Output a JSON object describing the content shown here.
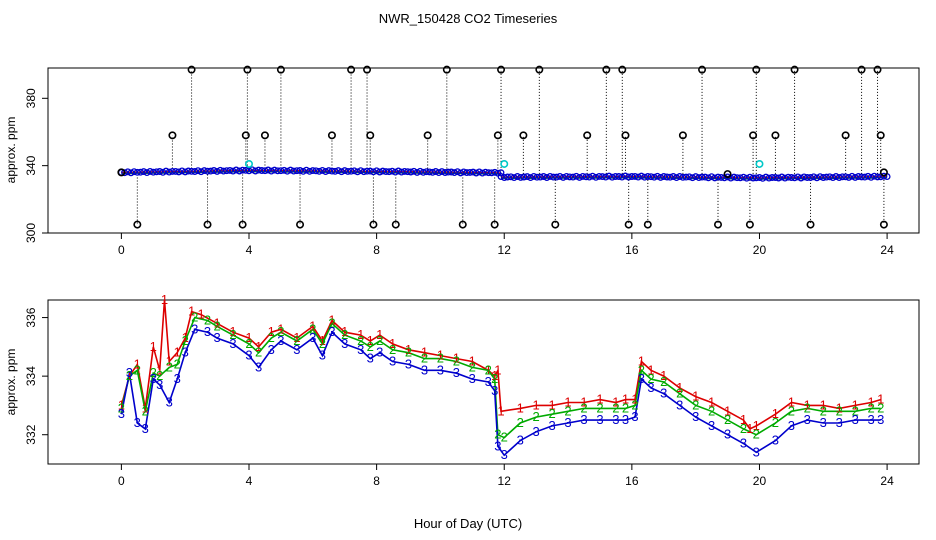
{
  "figure": {
    "title": "NWR_150428  CO2 Timeseries",
    "xlabel": "Hour of Day (UTC)"
  },
  "chart_data": [
    {
      "type": "scatter",
      "ylabel": "approx. ppm",
      "xlim": [
        -2.3,
        25.0
      ],
      "ylim": [
        300,
        398
      ],
      "xticks": [
        0,
        4,
        8,
        12,
        16,
        20,
        24
      ],
      "yticks": [
        300,
        340,
        380
      ],
      "ytick_labels": [
        "300",
        "340",
        "380"
      ],
      "colors": {
        "black": "#000000",
        "cyan": "#00c8c8",
        "blue": "#0000cc",
        "red": "#dd0000",
        "green": "#00aa00"
      },
      "main_series": {
        "name": "co2 measurements",
        "segments": [
          {
            "x": [
              0.0,
              4.0,
              8.0,
              11.9
            ],
            "y": [
              336.0,
              337.2,
              336.6,
              335.8
            ]
          },
          {
            "x": [
              11.9,
              16.0,
              20.0,
              24.0
            ],
            "y": [
              333.2,
              333.5,
              332.8,
              333.5
            ]
          }
        ]
      },
      "outliers": [
        {
          "x": 0.0,
          "y": 336
        },
        {
          "x": 0.5,
          "y": 305
        },
        {
          "x": 1.6,
          "y": 358
        },
        {
          "x": 2.2,
          "y": 397
        },
        {
          "x": 2.7,
          "y": 305
        },
        {
          "x": 3.8,
          "y": 305
        },
        {
          "x": 3.9,
          "y": 358
        },
        {
          "x": 3.95,
          "y": 397
        },
        {
          "x": 4.5,
          "y": 358
        },
        {
          "x": 5.0,
          "y": 397
        },
        {
          "x": 5.6,
          "y": 305
        },
        {
          "x": 6.6,
          "y": 358
        },
        {
          "x": 7.2,
          "y": 397
        },
        {
          "x": 7.7,
          "y": 397
        },
        {
          "x": 7.8,
          "y": 358
        },
        {
          "x": 7.9,
          "y": 305
        },
        {
          "x": 8.6,
          "y": 305
        },
        {
          "x": 9.6,
          "y": 358
        },
        {
          "x": 10.2,
          "y": 397
        },
        {
          "x": 10.7,
          "y": 305
        },
        {
          "x": 11.7,
          "y": 305
        },
        {
          "x": 11.8,
          "y": 358
        },
        {
          "x": 11.9,
          "y": 397
        },
        {
          "x": 12.6,
          "y": 358
        },
        {
          "x": 13.1,
          "y": 397
        },
        {
          "x": 13.6,
          "y": 305
        },
        {
          "x": 14.6,
          "y": 358
        },
        {
          "x": 15.2,
          "y": 397
        },
        {
          "x": 15.7,
          "y": 397
        },
        {
          "x": 15.8,
          "y": 358
        },
        {
          "x": 15.9,
          "y": 305
        },
        {
          "x": 16.5,
          "y": 305
        },
        {
          "x": 17.6,
          "y": 358
        },
        {
          "x": 18.2,
          "y": 397
        },
        {
          "x": 18.7,
          "y": 305
        },
        {
          "x": 19.7,
          "y": 305
        },
        {
          "x": 19.8,
          "y": 358
        },
        {
          "x": 19.9,
          "y": 397
        },
        {
          "x": 20.5,
          "y": 358
        },
        {
          "x": 21.1,
          "y": 397
        },
        {
          "x": 21.6,
          "y": 305
        },
        {
          "x": 22.7,
          "y": 358
        },
        {
          "x": 23.2,
          "y": 397
        },
        {
          "x": 23.7,
          "y": 397
        },
        {
          "x": 23.8,
          "y": 358
        },
        {
          "x": 23.9,
          "y": 305
        },
        {
          "x": 23.9,
          "y": 336
        },
        {
          "x": 19.0,
          "y": 335
        }
      ],
      "cyan_points": [
        {
          "x": 4.0,
          "y": 341
        },
        {
          "x": 12.0,
          "y": 341
        },
        {
          "x": 20.0,
          "y": 341
        }
      ]
    },
    {
      "type": "line",
      "ylabel": "approx. ppm",
      "xlim": [
        -2.3,
        25.0
      ],
      "ylim": [
        331,
        336.6
      ],
      "xticks": [
        0,
        4,
        8,
        12,
        16,
        20,
        24
      ],
      "yticks": [
        332,
        334,
        336
      ],
      "series": [
        {
          "name": "1",
          "color": "#dd0000",
          "label": "1",
          "x": [
            0.0,
            0.25,
            0.5,
            0.75,
            1.0,
            1.2,
            1.35,
            1.5,
            1.75,
            2.0,
            2.2,
            2.5,
            3.0,
            3.5,
            4.0,
            4.3,
            4.7,
            5.0,
            5.5,
            6.0,
            6.3,
            6.6,
            7.0,
            7.5,
            7.8,
            8.1,
            8.5,
            9.0,
            9.5,
            10.0,
            10.5,
            11.0,
            11.5,
            11.7,
            11.8,
            11.9,
            12.5,
            13.0,
            13.5,
            14.0,
            14.5,
            15.0,
            15.5,
            15.8,
            16.1,
            16.3,
            16.6,
            17.0,
            17.5,
            18.0,
            18.5,
            19.0,
            19.5,
            19.7,
            19.9,
            20.5,
            21.0,
            21.5,
            22.0,
            22.5,
            23.0,
            23.5,
            23.8
          ],
          "y": [
            333.0,
            334.0,
            334.4,
            332.9,
            335.0,
            334.2,
            336.6,
            334.5,
            334.8,
            335.3,
            336.2,
            336.1,
            335.8,
            335.5,
            335.3,
            335.0,
            335.5,
            335.6,
            335.3,
            335.7,
            335.2,
            335.9,
            335.5,
            335.4,
            335.2,
            335.4,
            335.1,
            334.9,
            334.8,
            334.7,
            334.6,
            334.5,
            334.2,
            334.0,
            334.2,
            332.8,
            332.9,
            333.0,
            333.0,
            333.1,
            333.1,
            333.2,
            333.1,
            333.2,
            333.2,
            334.5,
            334.2,
            334.0,
            333.6,
            333.3,
            333.1,
            332.8,
            332.5,
            332.2,
            332.3,
            332.7,
            333.1,
            333.0,
            333.0,
            332.9,
            333.0,
            333.1,
            333.2
          ]
        },
        {
          "name": "2",
          "color": "#00aa00",
          "label": "2",
          "x": [
            0.0,
            0.25,
            0.5,
            0.75,
            1.0,
            1.2,
            1.5,
            1.75,
            2.0,
            2.3,
            2.7,
            3.0,
            3.5,
            4.0,
            4.3,
            4.7,
            5.0,
            5.5,
            6.0,
            6.3,
            6.6,
            7.0,
            7.5,
            7.8,
            8.1,
            8.5,
            9.0,
            9.5,
            10.0,
            10.5,
            11.0,
            11.5,
            11.7,
            11.8,
            12.0,
            12.5,
            13.0,
            13.5,
            14.0,
            14.5,
            15.0,
            15.5,
            15.8,
            16.1,
            16.3,
            16.6,
            17.0,
            17.5,
            18.0,
            18.5,
            19.0,
            19.5,
            19.9,
            20.5,
            21.0,
            21.5,
            22.0,
            22.5,
            23.0,
            23.5,
            23.8
          ],
          "y": [
            332.9,
            334.0,
            334.2,
            332.8,
            334.1,
            334.0,
            334.3,
            334.4,
            335.2,
            336.0,
            335.9,
            335.7,
            335.4,
            335.1,
            334.8,
            335.3,
            335.5,
            335.2,
            335.6,
            335.1,
            335.8,
            335.4,
            335.2,
            335.0,
            335.2,
            334.9,
            334.8,
            334.6,
            334.6,
            334.5,
            334.3,
            334.2,
            333.9,
            332.0,
            331.9,
            332.4,
            332.6,
            332.7,
            332.8,
            332.9,
            332.9,
            332.9,
            332.9,
            333.0,
            334.2,
            333.9,
            333.8,
            333.4,
            333.0,
            332.8,
            332.5,
            332.2,
            332.0,
            332.4,
            332.8,
            332.9,
            332.8,
            332.8,
            332.8,
            332.9,
            332.9
          ]
        },
        {
          "name": "3",
          "color": "#0000cc",
          "label": "3",
          "x": [
            0.0,
            0.25,
            0.5,
            0.75,
            1.0,
            1.2,
            1.5,
            1.75,
            2.0,
            2.3,
            2.7,
            3.0,
            3.5,
            4.0,
            4.3,
            4.7,
            5.0,
            5.5,
            6.0,
            6.3,
            6.6,
            7.0,
            7.5,
            7.8,
            8.1,
            8.5,
            9.0,
            9.5,
            10.0,
            10.5,
            11.0,
            11.5,
            11.7,
            11.8,
            12.0,
            12.5,
            13.0,
            13.5,
            14.0,
            14.5,
            15.0,
            15.5,
            15.8,
            16.1,
            16.3,
            16.6,
            17.0,
            17.5,
            18.0,
            18.5,
            19.0,
            19.5,
            19.9,
            20.5,
            21.0,
            21.5,
            22.0,
            22.5,
            23.0,
            23.5,
            23.8
          ],
          "y": [
            332.7,
            334.1,
            332.4,
            332.2,
            333.9,
            333.7,
            333.1,
            333.9,
            334.8,
            335.6,
            335.5,
            335.3,
            335.1,
            334.7,
            334.3,
            334.9,
            335.2,
            334.9,
            335.3,
            334.7,
            335.5,
            335.1,
            334.9,
            334.6,
            334.8,
            334.5,
            334.4,
            334.2,
            334.2,
            334.1,
            333.9,
            333.8,
            333.5,
            331.6,
            331.3,
            331.8,
            332.1,
            332.3,
            332.4,
            332.5,
            332.5,
            332.5,
            332.5,
            332.6,
            333.9,
            333.6,
            333.4,
            333.0,
            332.6,
            332.3,
            332.0,
            331.7,
            331.4,
            331.8,
            332.3,
            332.5,
            332.4,
            332.4,
            332.5,
            332.5,
            332.5
          ]
        }
      ]
    }
  ]
}
